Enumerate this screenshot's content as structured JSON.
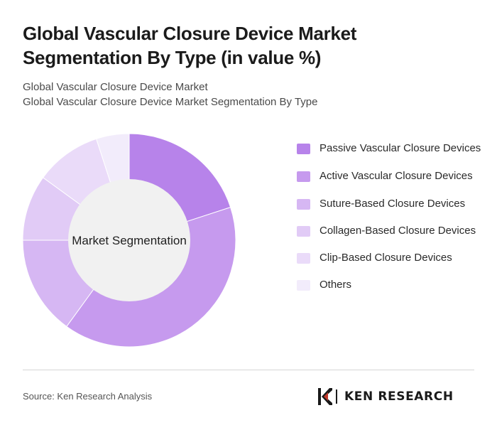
{
  "header": {
    "title": "Global Vascular Closure Device Market Segmentation By Type (in value %)",
    "subtitle_line1": "Global Vascular Closure Device Market",
    "subtitle_line2": "Global Vascular Closure Device Market Segmentation By Type"
  },
  "chart_data": {
    "type": "pie",
    "variant": "donut",
    "center_label": "Market Segmentation",
    "categories": [
      "Passive Vascular Closure Devices",
      "Active Vascular Closure Devices",
      "Suture-Based Closure Devices",
      "Collagen-Based Closure Devices",
      "Clip-Based Closure Devices",
      "Others"
    ],
    "values": [
      20,
      40,
      15,
      10,
      10,
      5
    ],
    "colors": [
      "#b783ea",
      "#c69aee",
      "#d6b7f3",
      "#e1cbf6",
      "#eadbf9",
      "#f2ecfb"
    ],
    "legend_position": "right"
  },
  "footer": {
    "source": "Source: Ken Research Analysis",
    "logo_text": "KEN RESEARCH"
  }
}
